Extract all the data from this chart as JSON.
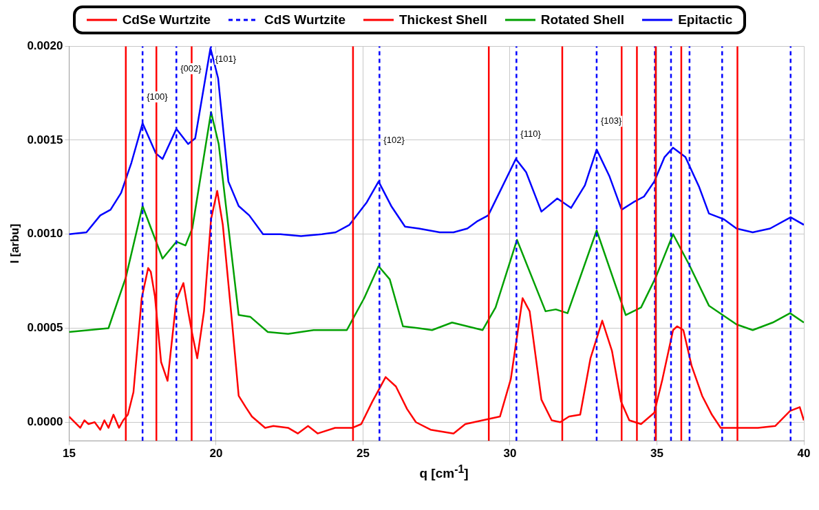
{
  "chart_data": {
    "type": "line",
    "xlabel": "q [cm$^{-1}$]",
    "ylabel": "I [arbu]",
    "xlim": [
      15,
      40
    ],
    "xticks": [
      15,
      20,
      25,
      30,
      35,
      40
    ],
    "ylim": [
      -0.0001,
      0.002
    ],
    "yticks": [
      {
        "value": 0,
        "label": "0.0000"
      },
      {
        "value": 0.0005,
        "label": "0.0005"
      },
      {
        "value": 0.001,
        "label": "0.0010"
      },
      {
        "value": 0.0015,
        "label": "0.0015"
      },
      {
        "value": 0.002,
        "label": "0.0020"
      }
    ],
    "grid": true,
    "legend": "top",
    "marker": "none",
    "line_style": "solid",
    "annotations": [
      {
        "text": "{100}",
        "x": 17.5,
        "y": 0.00173
      },
      {
        "text": "{002}",
        "x": 18.65,
        "y": 0.00188
      },
      {
        "text": "{101}",
        "x": 19.83,
        "y": 0.00193
      },
      {
        "text": "{102}",
        "x": 25.56,
        "y": 0.0015
      },
      {
        "text": "{110}",
        "x": 30.22,
        "y": 0.00153
      },
      {
        "text": "{103}",
        "x": 32.95,
        "y": 0.0016
      }
    ],
    "series": [
      {
        "name": "CdSe Wurtzite",
        "color": "#ff0000",
        "line_style": "solid",
        "x": [
          16.93,
          16.93
        ],
        "values": [
          -0.0001,
          0.002
        ]
      },
      {
        "color": "#ff0000",
        "line_style": "solid",
        "x": [
          17.97,
          17.97
        ],
        "values": [
          -0.0001,
          0.002
        ]
      },
      {
        "color": "#ff0000",
        "line_style": "solid",
        "x": [
          19.17,
          19.17
        ],
        "values": [
          -0.0001,
          0.002
        ]
      },
      {
        "color": "#ff0000",
        "line_style": "solid",
        "x": [
          24.66,
          24.66
        ],
        "values": [
          -0.0001,
          0.002
        ]
      },
      {
        "color": "#ff0000",
        "line_style": "solid",
        "x": [
          29.28,
          29.28
        ],
        "values": [
          -0.0001,
          0.002
        ]
      },
      {
        "color": "#ff0000",
        "line_style": "solid",
        "x": [
          31.78,
          31.78
        ],
        "values": [
          -0.0001,
          0.002
        ]
      },
      {
        "color": "#ff0000",
        "line_style": "solid",
        "x": [
          33.8,
          33.8
        ],
        "values": [
          -0.0001,
          0.002
        ]
      },
      {
        "color": "#ff0000",
        "line_style": "solid",
        "x": [
          34.32,
          34.32
        ],
        "values": [
          -0.0001,
          0.002
        ]
      },
      {
        "color": "#ff0000",
        "line_style": "solid",
        "x": [
          34.96,
          34.96
        ],
        "values": [
          -0.0001,
          0.002
        ]
      },
      {
        "color": "#ff0000",
        "line_style": "solid",
        "x": [
          35.83,
          35.83
        ],
        "values": [
          -0.0001,
          0.002
        ]
      },
      {
        "color": "#ff0000",
        "line_style": "solid",
        "x": [
          37.74,
          37.74
        ],
        "values": [
          -0.0001,
          0.002
        ]
      },
      {
        "name": "CdS Wurtzite",
        "color": "#0000ff",
        "line_style": "dashed",
        "x": [
          17.5,
          17.5
        ],
        "values": [
          -0.0001,
          0.002
        ]
      },
      {
        "color": "#0000ff",
        "line_style": "dashed",
        "x": [
          18.65,
          18.65
        ],
        "values": [
          -0.0001,
          0.002
        ]
      },
      {
        "color": "#0000ff",
        "line_style": "dashed",
        "x": [
          19.83,
          19.83
        ],
        "values": [
          -0.0001,
          0.002
        ]
      },
      {
        "color": "#0000ff",
        "line_style": "dashed",
        "x": [
          25.56,
          25.56
        ],
        "values": [
          -0.0001,
          0.002
        ]
      },
      {
        "color": "#0000ff",
        "line_style": "dashed",
        "x": [
          30.22,
          30.22
        ],
        "values": [
          -0.0001,
          0.002
        ]
      },
      {
        "color": "#0000ff",
        "line_style": "dashed",
        "x": [
          32.95,
          32.95
        ],
        "values": [
          -0.0001,
          0.002
        ]
      },
      {
        "color": "#0000ff",
        "line_style": "dashed",
        "x": [
          34.93,
          34.93
        ],
        "values": [
          -0.0001,
          0.002
        ]
      },
      {
        "color": "#0000ff",
        "line_style": "dashed",
        "x": [
          35.48,
          35.48
        ],
        "values": [
          -0.0001,
          0.002
        ]
      },
      {
        "color": "#0000ff",
        "line_style": "dashed",
        "x": [
          36.11,
          36.11
        ],
        "values": [
          -0.0001,
          0.002
        ]
      },
      {
        "color": "#0000ff",
        "line_style": "dashed",
        "x": [
          37.22,
          37.22
        ],
        "values": [
          -0.0001,
          0.002
        ]
      },
      {
        "color": "#0000ff",
        "line_style": "dashed",
        "x": [
          39.55,
          39.55
        ],
        "values": [
          -0.0001,
          0.002
        ]
      },
      {
        "name": "Thickest Shell",
        "color": "#ff0000",
        "x": [
          15.0,
          15.38,
          15.52,
          15.66,
          15.87,
          16.06,
          16.2,
          16.34,
          16.51,
          16.7,
          16.84,
          17.0,
          17.19,
          17.47,
          17.69,
          17.78,
          17.92,
          18.13,
          18.35,
          18.65,
          18.89,
          19.05,
          19.19,
          19.36,
          19.59,
          19.83,
          20.04,
          20.23,
          20.54,
          20.77,
          21.01,
          21.22,
          21.67,
          21.95,
          22.45,
          22.78,
          23.13,
          23.46,
          24.05,
          24.64,
          24.94,
          25.32,
          25.77,
          26.12,
          26.5,
          26.8,
          27.3,
          28.08,
          28.48,
          29.07,
          29.66,
          30.03,
          30.43,
          30.67,
          31.07,
          31.42,
          31.71,
          32.01,
          32.39,
          32.74,
          33.14,
          33.47,
          33.78,
          34.06,
          34.46,
          34.91,
          35.19,
          35.55,
          35.69,
          35.9,
          36.18,
          36.54,
          36.87,
          37.17,
          37.76,
          38.44,
          39.03,
          39.53,
          39.86,
          40.0
        ],
        "values": [
          3e-05,
          -3e-05,
          1e-05,
          -1e-05,
          0.0,
          -4e-05,
          1e-05,
          -3e-05,
          4e-05,
          -3e-05,
          1e-05,
          4e-05,
          0.00016,
          0.00066,
          0.00082,
          0.0008,
          0.00067,
          0.00032,
          0.00022,
          0.00065,
          0.00074,
          0.00059,
          0.00047,
          0.00034,
          0.00059,
          0.00108,
          0.00123,
          0.00105,
          0.00054,
          0.00014,
          8e-05,
          3e-05,
          -3e-05,
          -2e-05,
          -3e-05,
          -6e-05,
          -2e-05,
          -6e-05,
          -3e-05,
          -3e-05,
          -1e-05,
          0.00011,
          0.00024,
          0.00019,
          7e-05,
          0.0,
          -4e-05,
          -6e-05,
          -1e-05,
          1e-05,
          3e-05,
          0.00023,
          0.00066,
          0.00059,
          0.00012,
          1e-05,
          0.0,
          3e-05,
          4e-05,
          0.00034,
          0.00054,
          0.00038,
          0.00011,
          1e-05,
          -1e-05,
          5e-05,
          0.00023,
          0.00049,
          0.00051,
          0.00049,
          0.0003,
          0.00014,
          4e-05,
          -3e-05,
          -3e-05,
          -3e-05,
          -2e-05,
          6e-05,
          8e-05,
          1e-05
        ]
      },
      {
        "name": "Rotated Shell",
        "color": "#00a000",
        "x": [
          15.0,
          16.34,
          16.93,
          17.5,
          18.18,
          18.65,
          18.96,
          19.19,
          19.83,
          20.09,
          20.77,
          21.17,
          21.76,
          22.45,
          23.32,
          24.45,
          25.04,
          25.53,
          25.91,
          26.36,
          26.9,
          27.35,
          28.03,
          29.07,
          29.51,
          30.24,
          31.21,
          31.56,
          31.96,
          32.95,
          33.94,
          34.46,
          34.96,
          35.55,
          36.09,
          36.77,
          37.71,
          38.26,
          38.94,
          39.53,
          40.0
        ],
        "values": [
          0.00048,
          0.0005,
          0.00077,
          0.00115,
          0.00087,
          0.00096,
          0.00094,
          0.00103,
          0.00165,
          0.00148,
          0.00057,
          0.00056,
          0.00048,
          0.00047,
          0.00049,
          0.00049,
          0.00066,
          0.00083,
          0.00076,
          0.00051,
          0.0005,
          0.00049,
          0.00053,
          0.00049,
          0.00061,
          0.00097,
          0.00059,
          0.0006,
          0.00058,
          0.00102,
          0.00057,
          0.00061,
          0.00077,
          0.001,
          0.00084,
          0.00062,
          0.00052,
          0.00049,
          0.00053,
          0.00058,
          0.00053
        ]
      },
      {
        "name": "Epitactic",
        "color": "#0000ff",
        "x": [
          15.0,
          15.59,
          16.06,
          16.41,
          16.77,
          17.12,
          17.5,
          17.95,
          18.18,
          18.65,
          19.05,
          19.29,
          19.81,
          20.07,
          20.42,
          20.77,
          21.13,
          21.6,
          22.19,
          22.89,
          23.6,
          24.07,
          24.54,
          25.13,
          25.53,
          25.96,
          26.43,
          26.9,
          27.61,
          28.08,
          28.55,
          28.9,
          29.26,
          29.73,
          30.2,
          30.55,
          31.07,
          31.61,
          32.08,
          32.55,
          32.95,
          33.38,
          33.8,
          34.2,
          34.56,
          34.91,
          35.26,
          35.55,
          35.97,
          36.44,
          36.77,
          37.27,
          37.71,
          38.26,
          38.85,
          39.55,
          40.0
        ],
        "values": [
          0.001,
          0.00101,
          0.0011,
          0.00113,
          0.00122,
          0.00138,
          0.00159,
          0.00143,
          0.0014,
          0.00156,
          0.00148,
          0.00151,
          0.00199,
          0.00183,
          0.00128,
          0.00115,
          0.0011,
          0.001,
          0.001,
          0.00099,
          0.001,
          0.00101,
          0.00105,
          0.00117,
          0.00128,
          0.00115,
          0.00104,
          0.00103,
          0.00101,
          0.00101,
          0.00103,
          0.00107,
          0.0011,
          0.00125,
          0.0014,
          0.00133,
          0.00112,
          0.00119,
          0.00114,
          0.00126,
          0.00145,
          0.00131,
          0.00113,
          0.00117,
          0.0012,
          0.00128,
          0.00141,
          0.00146,
          0.00141,
          0.00125,
          0.00111,
          0.00108,
          0.00103,
          0.00101,
          0.00103,
          0.00109,
          0.00105
        ]
      }
    ]
  }
}
